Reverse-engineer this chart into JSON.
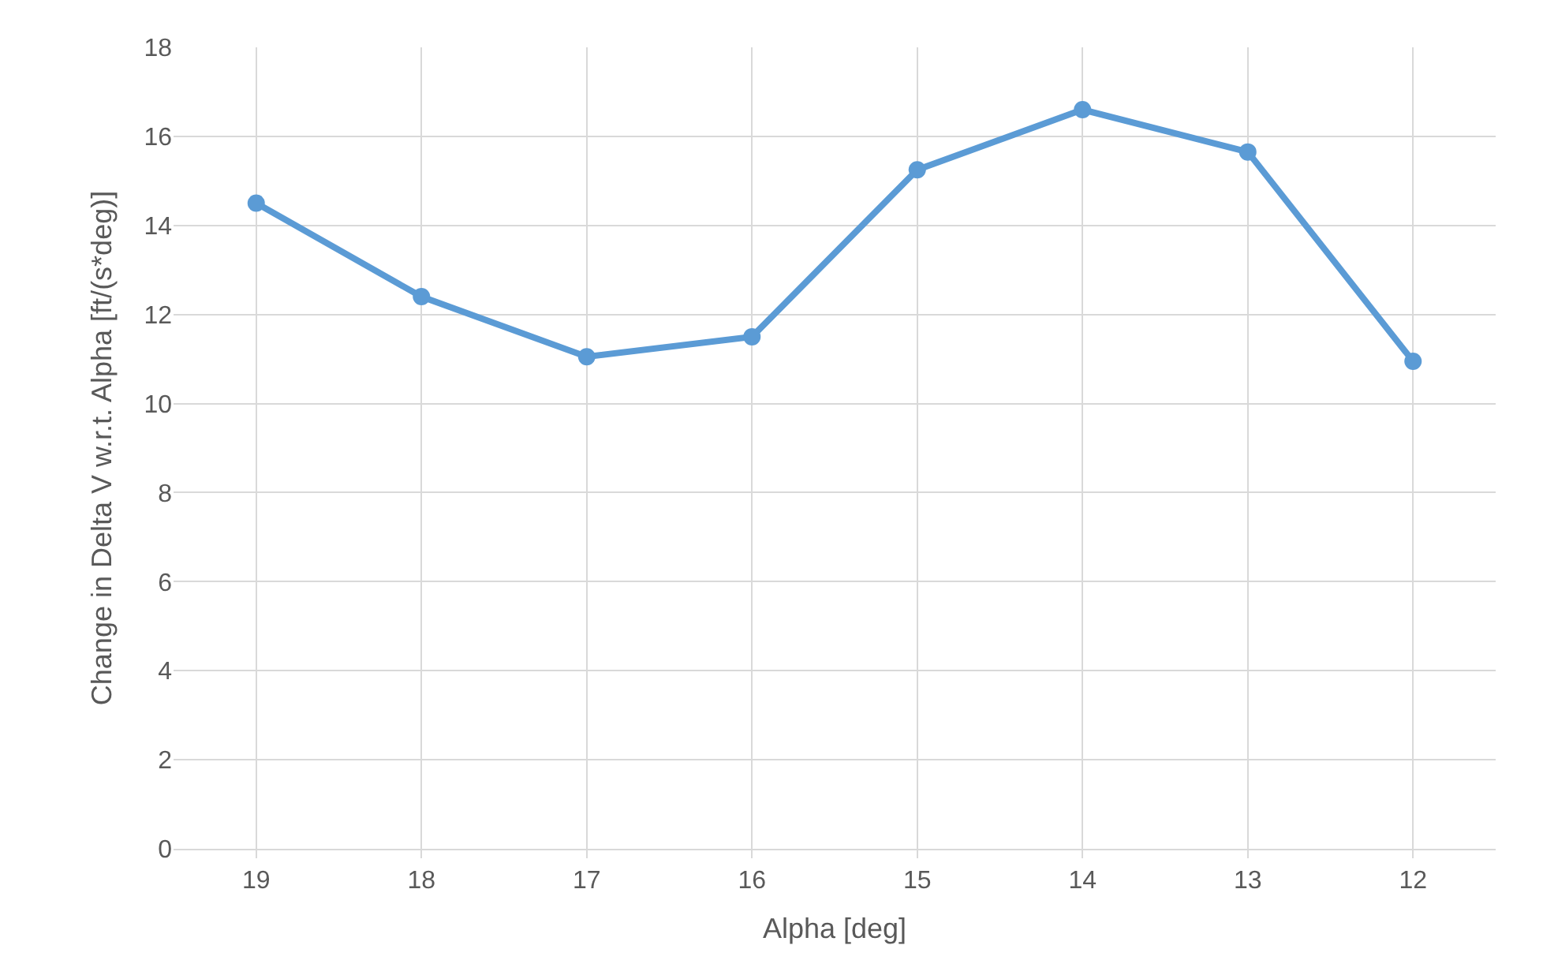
{
  "chart_data": {
    "type": "line",
    "xlabel": "Alpha [deg]",
    "ylabel": "Change in Delta V w.r.t. Alpha [ft/(s*deg)]",
    "categories": [
      "19",
      "18",
      "17",
      "16",
      "15",
      "14",
      "13",
      "12"
    ],
    "series": [
      {
        "color": "#5b9bd5",
        "values": [
          14.5,
          12.4,
          11.05,
          11.5,
          15.25,
          16.6,
          15.65,
          10.95
        ]
      }
    ],
    "ylim": [
      0,
      18
    ],
    "yticks": [
      0,
      2,
      4,
      6,
      8,
      10,
      12,
      14,
      16,
      18
    ],
    "grid": true,
    "marker": "circle",
    "line_style": "solid"
  }
}
